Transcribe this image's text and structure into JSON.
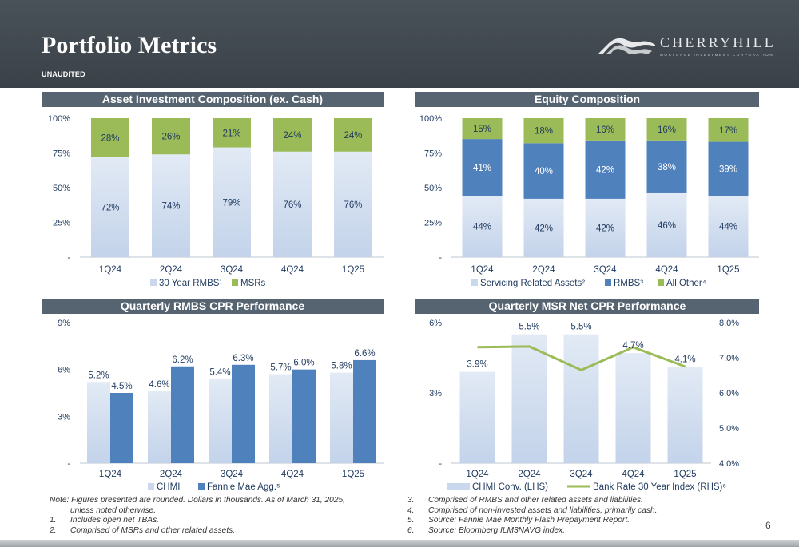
{
  "page": {
    "title": "Portfolio Metrics",
    "subtitle": "UNAUDITED",
    "page_number": "6"
  },
  "logo": {
    "name": "CHERRYHILL",
    "tagline": "MORTGAGE INVESTMENT CORPORATION"
  },
  "colors": {
    "header": "#3e464d",
    "panel_title": "#566371",
    "light_blue": "#c9d8ec",
    "dark_blue": "#4f81bd",
    "green": "#9bbb59",
    "text_blue": "#1f3a5f"
  },
  "chart_data": [
    {
      "type": "bar",
      "stacked": true,
      "title": "Asset Investment Composition (ex. Cash)",
      "categories": [
        "1Q24",
        "2Q24",
        "3Q24",
        "4Q24",
        "1Q25"
      ],
      "series": [
        {
          "name": "30 Year RMBS¹",
          "values": [
            72,
            74,
            79,
            76,
            76
          ],
          "labels": [
            "72%",
            "74%",
            "79%",
            "76%",
            "76%"
          ],
          "color": "#c9d8ec"
        },
        {
          "name": "MSRs",
          "values": [
            28,
            26,
            21,
            24,
            24
          ],
          "labels": [
            "28%",
            "26%",
            "21%",
            "24%",
            "24%"
          ],
          "color": "#9bbb59"
        }
      ],
      "ylim": [
        0,
        100
      ],
      "yticks": [
        "-",
        "25%",
        "50%",
        "75%",
        "100%"
      ],
      "legend": "bottom"
    },
    {
      "type": "bar",
      "stacked": true,
      "title": "Equity Composition",
      "categories": [
        "1Q24",
        "2Q24",
        "3Q24",
        "4Q24",
        "1Q25"
      ],
      "series": [
        {
          "name": "Servicing Related Assets²",
          "values": [
            44,
            42,
            42,
            46,
            44
          ],
          "labels": [
            "44%",
            "42%",
            "42%",
            "46%",
            "44%"
          ],
          "color": "#c9d8ec"
        },
        {
          "name": "RMBS³",
          "values": [
            41,
            40,
            42,
            38,
            39
          ],
          "labels": [
            "41%",
            "40%",
            "42%",
            "38%",
            "39%"
          ],
          "color": "#4f81bd"
        },
        {
          "name": "All Other⁴",
          "values": [
            15,
            18,
            16,
            16,
            17
          ],
          "labels": [
            "15%",
            "18%",
            "16%",
            "16%",
            "17%"
          ],
          "color": "#9bbb59"
        }
      ],
      "ylim": [
        0,
        100
      ],
      "yticks": [
        "-",
        "25%",
        "50%",
        "75%",
        "100%"
      ],
      "legend": "bottom"
    },
    {
      "type": "bar",
      "stacked": false,
      "title": "Quarterly RMBS CPR Performance",
      "categories": [
        "1Q24",
        "2Q24",
        "3Q24",
        "4Q24",
        "1Q25"
      ],
      "series": [
        {
          "name": "CHMI",
          "values": [
            5.2,
            4.6,
            5.4,
            5.7,
            5.8
          ],
          "labels": [
            "5.2%",
            "4.6%",
            "5.4%",
            "5.7%",
            "5.8%"
          ],
          "color": "#c9d8ec"
        },
        {
          "name": "Fannie Mae Agg.⁵",
          "values": [
            4.5,
            6.2,
            6.3,
            6.0,
            6.6
          ],
          "labels": [
            "4.5%",
            "6.2%",
            "6.3%",
            "6.0%",
            "6.6%"
          ],
          "color": "#4f81bd"
        }
      ],
      "ylim": [
        0,
        9
      ],
      "yticks": [
        "-",
        "3%",
        "6%",
        "9%"
      ],
      "legend": "bottom"
    },
    {
      "type": "bar",
      "title": "Quarterly MSR Net CPR Performance",
      "categories": [
        "1Q24",
        "2Q24",
        "3Q24",
        "4Q24",
        "1Q25"
      ],
      "series": [
        {
          "name": "CHMI Conv. (LHS)",
          "values": [
            3.9,
            5.5,
            5.5,
            4.7,
            4.1
          ],
          "labels": [
            "3.9%",
            "5.5%",
            "5.5%",
            "4.7%",
            "4.1%"
          ],
          "color": "#c9d8ec",
          "axis": "left"
        },
        {
          "name": "Bank Rate 30 Year Index (RHS)⁶",
          "type": "line",
          "values": [
            7.3,
            7.32,
            6.65,
            7.3,
            6.75
          ],
          "color": "#9bbb59",
          "axis": "right"
        }
      ],
      "ylim": [
        0,
        6
      ],
      "yticks": [
        "-",
        "3%",
        "6%"
      ],
      "y2lim": [
        4.0,
        8.0
      ],
      "y2ticks": [
        "4.0%",
        "5.0%",
        "6.0%",
        "7.0%",
        "8.0%"
      ],
      "legend": "bottom"
    }
  ],
  "footnotes": {
    "left": [
      {
        "num": "",
        "text": "Note: Figures presented are rounded. Dollars in thousands. As of March 31, 2025,"
      },
      {
        "num": "",
        "text": "unless noted otherwise.",
        "indent": true
      },
      {
        "num": "1.",
        "text": "Includes open net TBAs."
      },
      {
        "num": "2.",
        "text": "Comprised of MSRs and other related assets."
      }
    ],
    "right": [
      {
        "num": "3.",
        "text": "Comprised of RMBS and other related assets and liabilities."
      },
      {
        "num": "4.",
        "text": "Comprised of non-invested assets and liabilities, primarily cash."
      },
      {
        "num": "5.",
        "text": "Source: Fannie Mae Monthly Flash Prepayment Report."
      },
      {
        "num": "6.",
        "text": "Source: Bloomberg ILM3NAVG index."
      }
    ]
  }
}
